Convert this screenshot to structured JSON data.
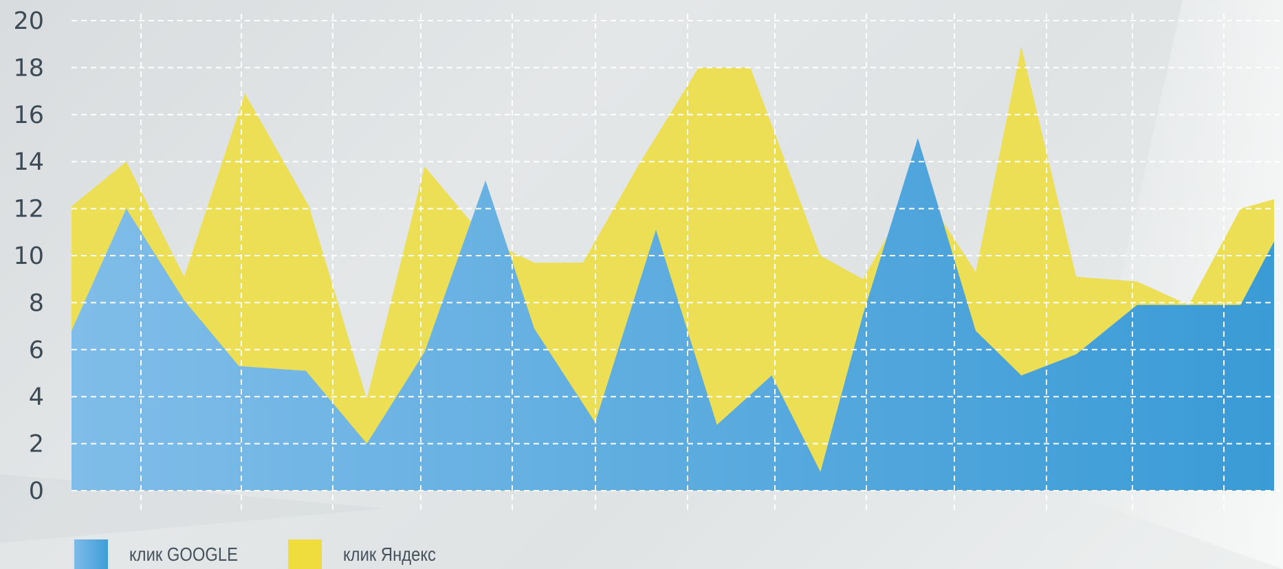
{
  "chart_data": {
    "type": "area",
    "title": "",
    "xlabel": "",
    "ylabel": "",
    "ylim": [
      0,
      20
    ],
    "yticks": [
      0,
      2,
      4,
      6,
      8,
      10,
      12,
      14,
      16,
      18,
      20
    ],
    "grid": true,
    "legend_position": "bottom-left",
    "series": [
      {
        "name": "клик Яндекс",
        "color": "#ecde55",
        "x": [
          0,
          0.9,
          1.85,
          2.85,
          3.9,
          4.85,
          5.8,
          6.8,
          7.6,
          8.4,
          9.3,
          10.3,
          10.5,
          11.15,
          12.3,
          13.0,
          13.9,
          14.85,
          15.6,
          16.5,
          17.5,
          18.35,
          19.2,
          19.75
        ],
        "y": [
          12.1,
          14.0,
          9.1,
          16.9,
          12.1,
          3.9,
          13.8,
          10.7,
          9.7,
          9.7,
          13.8,
          18.0,
          18.0,
          18.0,
          10.0,
          9.0,
          13.1,
          9.3,
          18.9,
          9.1,
          8.9,
          7.9,
          12.0,
          12.4
        ]
      },
      {
        "name": "клик GOOGLE",
        "color": "#5aa6df",
        "x": [
          0,
          0.9,
          1.85,
          2.75,
          3.85,
          4.85,
          5.8,
          6.8,
          7.6,
          8.6,
          9.6,
          10.6,
          11.5,
          12.3,
          13.0,
          13.9,
          14.85,
          15.6,
          16.5,
          17.5,
          18.35,
          19.2,
          19.75
        ],
        "y": [
          6.8,
          12.0,
          8.1,
          5.3,
          5.1,
          2.0,
          5.9,
          13.2,
          6.9,
          2.9,
          11.1,
          2.8,
          4.9,
          0.8,
          7.5,
          15.0,
          6.8,
          4.9,
          5.8,
          7.9,
          7.9,
          7.9,
          10.6
        ]
      }
    ]
  }
}
